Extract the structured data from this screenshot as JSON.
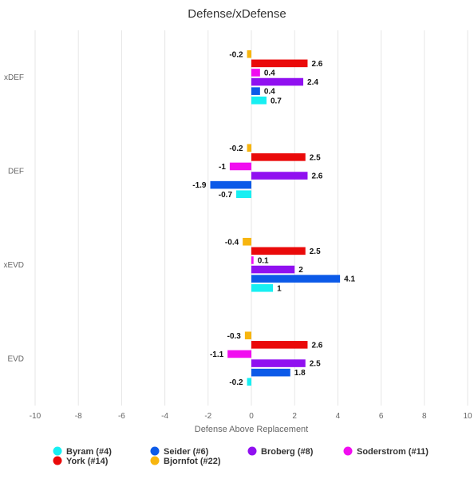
{
  "chart_data": {
    "type": "bar",
    "orientation": "horizontal",
    "title": "Defense/xDefense",
    "xlabel": "Defense Above Replacement",
    "ylabel": "",
    "xlim": [
      -10,
      10
    ],
    "xticks": [
      -10,
      -8,
      -6,
      -4,
      -2,
      0,
      2,
      4,
      6,
      8,
      10
    ],
    "categories": [
      "xDEF",
      "DEF",
      "xEVD",
      "EVD"
    ],
    "grid": "vertical",
    "legend_position": "bottom",
    "series": [
      {
        "name": "Bjornfot (#22)",
        "color": "#f7b50f",
        "values": [
          -0.2,
          -0.2,
          -0.4,
          -0.3
        ]
      },
      {
        "name": "York (#14)",
        "color": "#ea0a0a",
        "values": [
          2.6,
          2.5,
          2.5,
          2.6
        ]
      },
      {
        "name": "Soderstrom (#11)",
        "color": "#f10df0",
        "values": [
          0.4,
          -1,
          0.1,
          -1.1
        ]
      },
      {
        "name": "Broberg (#8)",
        "color": "#9010f0",
        "values": [
          2.4,
          2.6,
          2,
          2.5
        ]
      },
      {
        "name": "Seider (#6)",
        "color": "#0c5ae8",
        "values": [
          0.4,
          -1.9,
          4.1,
          1.8
        ]
      },
      {
        "name": "Byram (#4)",
        "color": "#17eff2",
        "values": [
          0.7,
          -0.7,
          1,
          -0.2
        ]
      }
    ],
    "legend_order": [
      "Byram (#4)",
      "Seider (#6)",
      "Broberg (#8)",
      "Soderstrom (#11)",
      "York (#14)",
      "Bjornfot (#22)"
    ]
  }
}
